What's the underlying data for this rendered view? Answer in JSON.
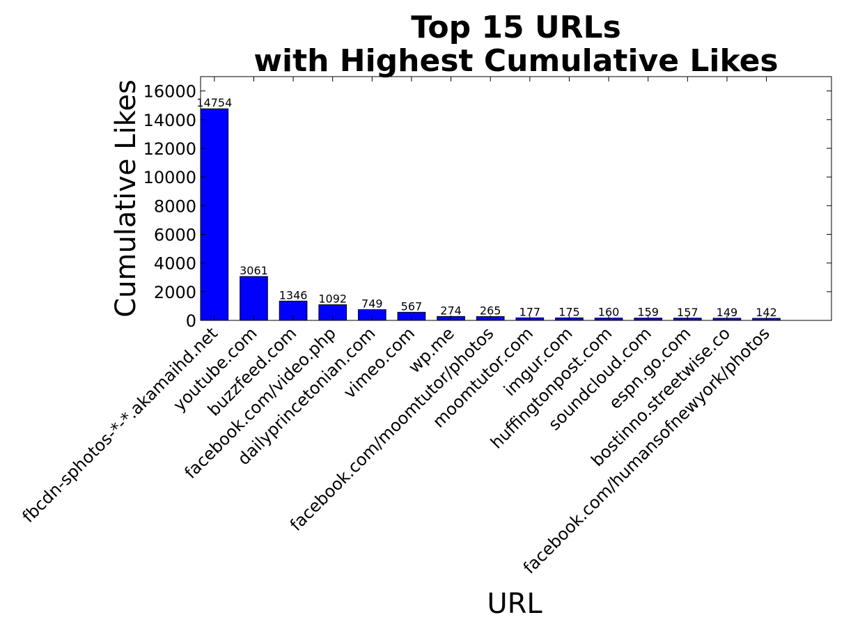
{
  "chart_data": {
    "type": "bar",
    "title": [
      "Top 15 URLs",
      "with Highest Cumulative Likes"
    ],
    "xlabel": "URL",
    "ylabel": "Cumulative Likes",
    "categories": [
      "fbcdn-sphotos-*-*.akamaihd.net",
      "youtube.com",
      "buzzfeed.com",
      "facebook.com/video.php",
      "dailyprincetonian.com",
      "vimeo.com",
      "wp.me",
      "facebook.com/moomtutor/photos",
      "moomtutor.com",
      "imgur.com",
      "huffingtonpost.com",
      "soundcloud.com",
      "espn.go.com",
      "bostinno.streetwise.co",
      "facebook.com/humansofnewyork/photos"
    ],
    "values": [
      14754,
      3061,
      1346,
      1092,
      749,
      567,
      274,
      265,
      177,
      175,
      160,
      159,
      157,
      149,
      142
    ],
    "data_labels": [
      "14754",
      "3061",
      "1346",
      "1092",
      "749",
      "567",
      "274",
      "265",
      "177",
      "175",
      "160",
      "159",
      "157",
      "149",
      "142"
    ],
    "ylim": [
      0,
      17000
    ],
    "yticks": [
      0,
      2000,
      4000,
      6000,
      8000,
      10000,
      12000,
      14000,
      16000
    ],
    "ytick_labels": [
      "0",
      "2000",
      "4000",
      "6000",
      "8000",
      "10000",
      "12000",
      "14000",
      "16000"
    ],
    "bar_color": "#0000ff",
    "edge_color": "#000000",
    "grid": false,
    "legend": "none"
  }
}
